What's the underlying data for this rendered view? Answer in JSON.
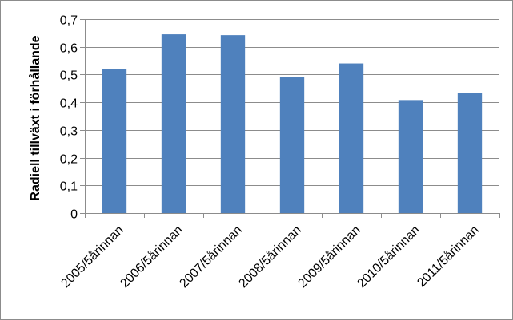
{
  "chart_data": {
    "type": "bar",
    "title": "",
    "xlabel": "",
    "ylabel": "Radiell tillväxt i förhållande",
    "categories": [
      "2005/5årinnan",
      "2006/5årinnan",
      "2007/5årinnan",
      "2008/5årinnan",
      "2009/5årinnan",
      "2010/5årinnan",
      "2011/5årinnan"
    ],
    "values": [
      0.52,
      0.645,
      0.642,
      0.492,
      0.54,
      0.408,
      0.434
    ],
    "ylim": [
      0,
      0.7
    ],
    "yticks": [
      "0",
      "0,1",
      "0,2",
      "0,3",
      "0,4",
      "0,5",
      "0,6",
      "0,7"
    ],
    "grid": true,
    "legend": "none",
    "bar_color": "#4f81bd",
    "grid_color": "#8c8c8c"
  }
}
